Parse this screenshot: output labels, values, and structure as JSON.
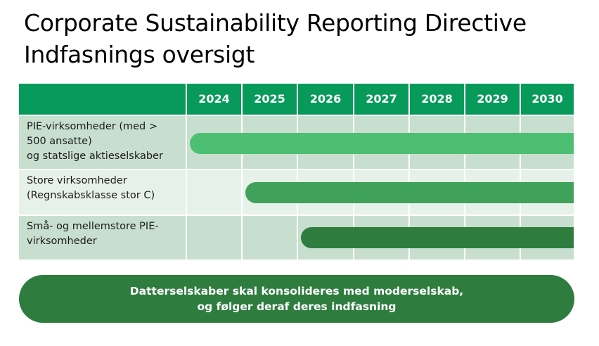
{
  "title": {
    "line1": "Corporate Sustainability Reporting Directive",
    "line2": "Indfasnings oversigt"
  },
  "header": {
    "label": "",
    "years": [
      "2024",
      "2025",
      "2026",
      "2027",
      "2028",
      "2029",
      "2030"
    ]
  },
  "rows": [
    {
      "label_lines": [
        "PIE-virksomheder (med >",
        "500 ansatte)",
        "og statslige aktieselskaber"
      ],
      "start_year": "2024",
      "bar_color": "#4dbf72",
      "cell_color": "#c8dfd0"
    },
    {
      "label_lines": [
        "Store virksomheder",
        "(Regnskabsklasse stor C)"
      ],
      "start_year": "2025",
      "bar_color": "#3fa15a",
      "cell_color": "#e6f1ea"
    },
    {
      "label_lines": [
        "Små- og mellemstore PIE-",
        "virksomheder"
      ],
      "start_year": "2026",
      "bar_color": "#2e7d3f",
      "cell_color": "#c8dfd0"
    }
  ],
  "footer": {
    "line1": "Datterselskaber skal konsolideres med moderselskab,",
    "line2": "og følger deraf deres indfasning"
  },
  "colors": {
    "header": "#079a5a",
    "footer": "#2e7d3f"
  }
}
